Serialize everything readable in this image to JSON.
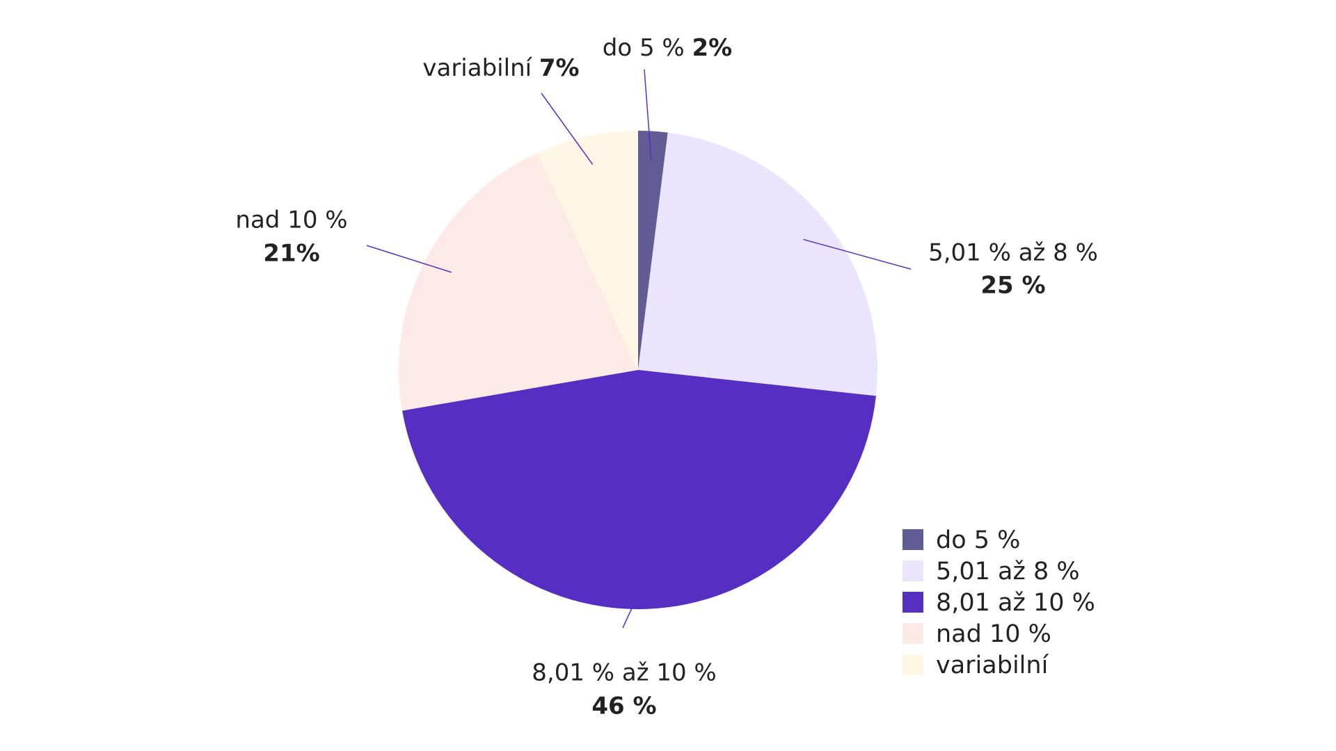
{
  "chart_data": {
    "type": "pie",
    "categories": [
      "do 5 %",
      "5,01 až 8 %",
      "8,01 až 10 %",
      "nad 10 %",
      "variabilní"
    ],
    "labels": [
      "do 5 %",
      "5,01 % až 8 %",
      "8,01 % až 10 %",
      "nad 10 %",
      "variabilní"
    ],
    "values": [
      2,
      25,
      46,
      21,
      7
    ],
    "value_labels": [
      "2%",
      "25 %",
      "46 %",
      "21%",
      "7%"
    ],
    "colors": [
      "#625c96",
      "#ebe4fd",
      "#572ec2",
      "#fde9e5",
      "#fef6e4"
    ],
    "legend": "lower right"
  }
}
